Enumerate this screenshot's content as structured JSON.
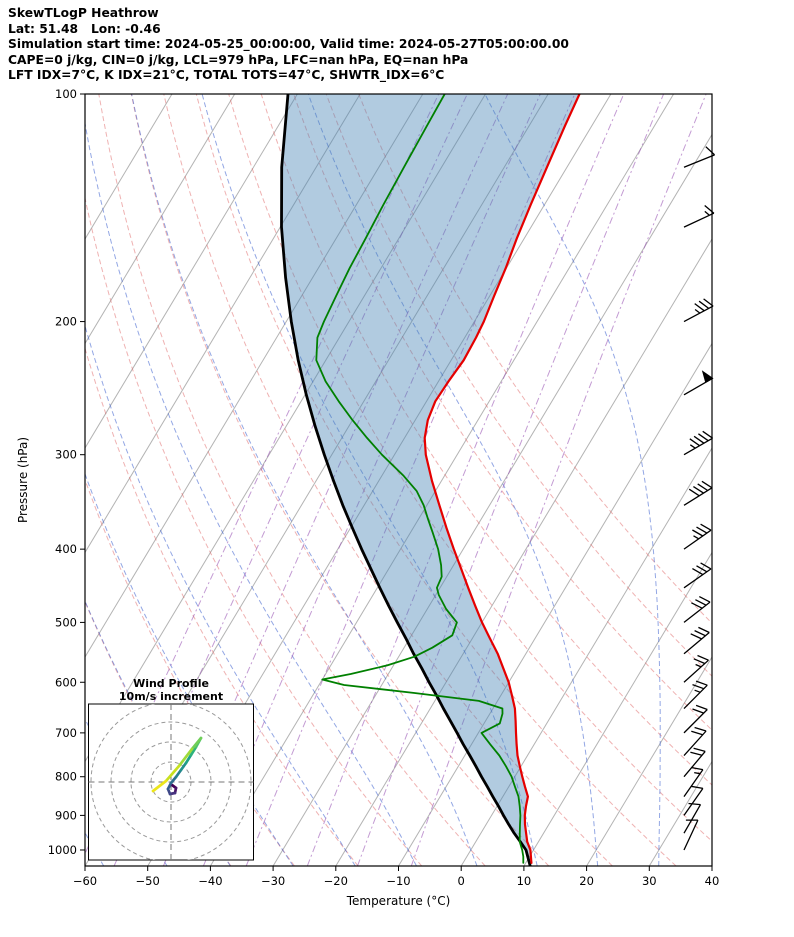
{
  "header": {
    "line1": "SkewTLogP Heathrow",
    "line2": "Lat: 51.48   Lon: -0.46",
    "line3": "Simulation start time: 2024-05-25_00:00:00, Valid time: 2024-05-27T05:00:00.00",
    "line4": "CAPE=0 j/kg, CIN=0 j/kg, LCL=979 hPa, LFC=nan hPa, EQ=nan hPa",
    "line5": "LFT IDX=7°C, K IDX=21°C, TOTAL TOTS=47°C, SHWTR_IDX=6°C"
  },
  "chart_data": {
    "type": "line",
    "subtype": "skewt-logp",
    "station": "Heathrow",
    "xlabel": "Temperature (°C)",
    "ylabel": "Pressure (hPa)",
    "x_ticks": [
      -60,
      -50,
      -40,
      -30,
      -20,
      -10,
      0,
      10,
      20,
      30,
      40
    ],
    "y_ticks": [
      100,
      200,
      300,
      400,
      500,
      600,
      700,
      800,
      900,
      1000
    ],
    "xlim": [
      -60,
      40
    ],
    "plim": [
      100,
      1050
    ],
    "skew_slope": 0.6,
    "series": [
      {
        "name": "temperature",
        "color": "#e50000",
        "width": 2.2,
        "points": [
          [
            1040,
            10.9
          ],
          [
            1020,
            10.2
          ],
          [
            1000,
            9.5
          ],
          [
            975,
            8.2
          ],
          [
            950,
            7.2
          ],
          [
            925,
            6.2
          ],
          [
            900,
            5.3
          ],
          [
            875,
            4.6
          ],
          [
            850,
            4.0
          ],
          [
            825,
            2.6
          ],
          [
            800,
            1.2
          ],
          [
            775,
            -0.2
          ],
          [
            750,
            -1.6
          ],
          [
            725,
            -2.8
          ],
          [
            700,
            -4.0
          ],
          [
            675,
            -5.2
          ],
          [
            650,
            -6.5
          ],
          [
            625,
            -8.2
          ],
          [
            600,
            -10.0
          ],
          [
            575,
            -12.2
          ],
          [
            550,
            -14.5
          ],
          [
            525,
            -17.2
          ],
          [
            500,
            -20.0
          ],
          [
            475,
            -22.7
          ],
          [
            450,
            -25.5
          ],
          [
            425,
            -28.4
          ],
          [
            400,
            -31.5
          ],
          [
            375,
            -34.7
          ],
          [
            350,
            -38.0
          ],
          [
            325,
            -41.5
          ],
          [
            300,
            -45.0
          ],
          [
            285,
            -46.8
          ],
          [
            270,
            -48.0
          ],
          [
            255,
            -48.6
          ],
          [
            240,
            -48.4
          ],
          [
            225,
            -48.0
          ],
          [
            210,
            -48.2
          ],
          [
            200,
            -48.5
          ],
          [
            185,
            -49.3
          ],
          [
            170,
            -50.1
          ],
          [
            155,
            -51.2
          ],
          [
            140,
            -52.2
          ],
          [
            125,
            -53.2
          ],
          [
            110,
            -54.3
          ],
          [
            100,
            -55.0
          ]
        ]
      },
      {
        "name": "dewpoint",
        "color": "#008000",
        "width": 1.8,
        "points": [
          [
            1040,
            9.6
          ],
          [
            1020,
            9.0
          ],
          [
            1000,
            8.2
          ],
          [
            975,
            7.0
          ],
          [
            950,
            6.2
          ],
          [
            925,
            5.4
          ],
          [
            900,
            4.6
          ],
          [
            875,
            3.6
          ],
          [
            850,
            2.5
          ],
          [
            825,
            1.0
          ],
          [
            800,
            -0.5
          ],
          [
            775,
            -2.4
          ],
          [
            750,
            -4.5
          ],
          [
            725,
            -7.0
          ],
          [
            700,
            -9.5
          ],
          [
            680,
            -7.5
          ],
          [
            660,
            -8.0
          ],
          [
            650,
            -8.5
          ],
          [
            635,
            -13.0
          ],
          [
            620,
            -24.0
          ],
          [
            605,
            -36.0
          ],
          [
            595,
            -40.0
          ],
          [
            585,
            -36.0
          ],
          [
            570,
            -31.0
          ],
          [
            555,
            -27.5
          ],
          [
            540,
            -25.5
          ],
          [
            520,
            -23.5
          ],
          [
            500,
            -24.0
          ],
          [
            480,
            -27.0
          ],
          [
            460,
            -29.5
          ],
          [
            450,
            -30.5
          ],
          [
            435,
            -30.8
          ],
          [
            420,
            -32.0
          ],
          [
            400,
            -34.0
          ],
          [
            380,
            -36.5
          ],
          [
            365,
            -38.5
          ],
          [
            350,
            -40.5
          ],
          [
            335,
            -43.0
          ],
          [
            320,
            -46.5
          ],
          [
            300,
            -52.0
          ],
          [
            285,
            -56.0
          ],
          [
            270,
            -60.0
          ],
          [
            255,
            -64.0
          ],
          [
            240,
            -68.0
          ],
          [
            225,
            -71.5
          ],
          [
            210,
            -73.5
          ],
          [
            200,
            -74.0
          ],
          [
            185,
            -74.5
          ],
          [
            170,
            -75.0
          ],
          [
            155,
            -75.3
          ],
          [
            140,
            -75.7
          ],
          [
            125,
            -76.0
          ],
          [
            110,
            -76.3
          ],
          [
            100,
            -76.5
          ]
        ]
      },
      {
        "name": "parcel",
        "color": "#000000",
        "width": 2.8,
        "points": [
          [
            1050,
            11.0
          ],
          [
            1000,
            8.8
          ],
          [
            975,
            7.1
          ],
          [
            950,
            5.3
          ],
          [
            925,
            3.6
          ],
          [
            900,
            1.9
          ],
          [
            875,
            0.2
          ],
          [
            850,
            -1.6
          ],
          [
            825,
            -3.4
          ],
          [
            800,
            -5.3
          ],
          [
            775,
            -7.2
          ],
          [
            750,
            -9.2
          ],
          [
            725,
            -11.3
          ],
          [
            700,
            -13.4
          ],
          [
            675,
            -15.6
          ],
          [
            650,
            -17.9
          ],
          [
            625,
            -20.2
          ],
          [
            600,
            -22.7
          ],
          [
            575,
            -25.2
          ],
          [
            550,
            -27.9
          ],
          [
            525,
            -30.6
          ],
          [
            500,
            -33.5
          ],
          [
            475,
            -36.5
          ],
          [
            450,
            -39.6
          ],
          [
            425,
            -42.8
          ],
          [
            400,
            -46.2
          ],
          [
            375,
            -49.7
          ],
          [
            350,
            -53.4
          ],
          [
            325,
            -57.2
          ],
          [
            300,
            -61.2
          ],
          [
            275,
            -65.4
          ],
          [
            250,
            -69.8
          ],
          [
            225,
            -74.4
          ],
          [
            200,
            -79.2
          ],
          [
            175,
            -84.3
          ],
          [
            150,
            -89.8
          ],
          [
            125,
            -95.5
          ],
          [
            100,
            -101.5
          ]
        ]
      }
    ],
    "shading": {
      "between": [
        "parcel",
        "temperature"
      ],
      "color": "#4682b4",
      "opacity": 0.42
    },
    "background": {
      "isotherms": {
        "color": "#a0a0a0",
        "opacity": 0.8,
        "min": -120,
        "max": 40,
        "step": 10
      },
      "dry_adiabats": {
        "color": "#e06666",
        "opacity": 0.5,
        "theta_min": -40,
        "theta_max": 80,
        "step": 10
      },
      "moist_adiabats": {
        "color": "#3a5fcd",
        "opacity": 0.55,
        "t0_min": -80,
        "t0_max": 40,
        "step": 10
      },
      "mixing_lines": {
        "color": "#9b59b6",
        "opacity": 0.6,
        "values_g_kg": [
          0.01,
          0.02,
          0.05,
          0.1,
          0.2,
          0.5,
          1,
          2
        ]
      }
    },
    "wind_barbs": {
      "color": "#000000",
      "x": 684,
      "levels": [
        {
          "p": 125,
          "kt": 10,
          "toward": 68
        },
        {
          "p": 150,
          "kt": 15,
          "toward": 65
        },
        {
          "p": 200,
          "kt": 35,
          "toward": 62
        },
        {
          "p": 250,
          "kt": 50,
          "toward": 60
        },
        {
          "p": 300,
          "kt": 45,
          "toward": 60
        },
        {
          "p": 350,
          "kt": 38,
          "toward": 58
        },
        {
          "p": 400,
          "kt": 35,
          "toward": 55
        },
        {
          "p": 450,
          "kt": 32,
          "toward": 55
        },
        {
          "p": 500,
          "kt": 30,
          "toward": 52
        },
        {
          "p": 550,
          "kt": 28,
          "toward": 50
        },
        {
          "p": 600,
          "kt": 25,
          "toward": 48
        },
        {
          "p": 650,
          "kt": 25,
          "toward": 45
        },
        {
          "p": 700,
          "kt": 22,
          "toward": 45
        },
        {
          "p": 750,
          "kt": 20,
          "toward": 42
        },
        {
          "p": 800,
          "kt": 18,
          "toward": 40
        },
        {
          "p": 850,
          "kt": 15,
          "toward": 35
        },
        {
          "p": 900,
          "kt": 12,
          "toward": 35
        },
        {
          "p": 950,
          "kt": 10,
          "toward": 30
        },
        {
          "p": 1000,
          "kt": 8,
          "toward": 25
        }
      ]
    },
    "hodograph": {
      "title": "Wind Profile",
      "subtitle": "10m/s increment",
      "ring_increment_ms": 10,
      "rings": [
        10,
        20,
        30,
        40
      ],
      "trace": [
        {
          "u": 0.5,
          "v": -1.5,
          "c": "#440154"
        },
        {
          "u": 2.5,
          "v": -3.0,
          "c": "#481467"
        },
        {
          "u": 2.0,
          "v": -5.5,
          "c": "#46327e"
        },
        {
          "u": -0.5,
          "v": -6.0,
          "c": "#3f4788"
        },
        {
          "u": -1.5,
          "v": -3.5,
          "c": "#365c8d"
        },
        {
          "u": 0.0,
          "v": -0.5,
          "c": "#2e6d8e"
        },
        {
          "u": 2.5,
          "v": 2.5,
          "c": "#277f8e"
        },
        {
          "u": 5.0,
          "v": 6.0,
          "c": "#21918c"
        },
        {
          "u": 7.5,
          "v": 9.5,
          "c": "#1fa187"
        },
        {
          "u": 10.0,
          "v": 13.5,
          "c": "#2db27d"
        },
        {
          "u": 12.5,
          "v": 17.5,
          "c": "#4ac16d"
        },
        {
          "u": 15.0,
          "v": 22.0,
          "c": "#70cf57"
        },
        {
          "u": 10.5,
          "v": 16.5,
          "c": "#9fda3a"
        },
        {
          "u": 4.0,
          "v": 8.0,
          "c": "#c8e020"
        },
        {
          "u": -2.5,
          "v": 0.5,
          "c": "#ece51b"
        },
        {
          "u": -9.0,
          "v": -4.5,
          "c": "#fde725"
        }
      ]
    }
  }
}
